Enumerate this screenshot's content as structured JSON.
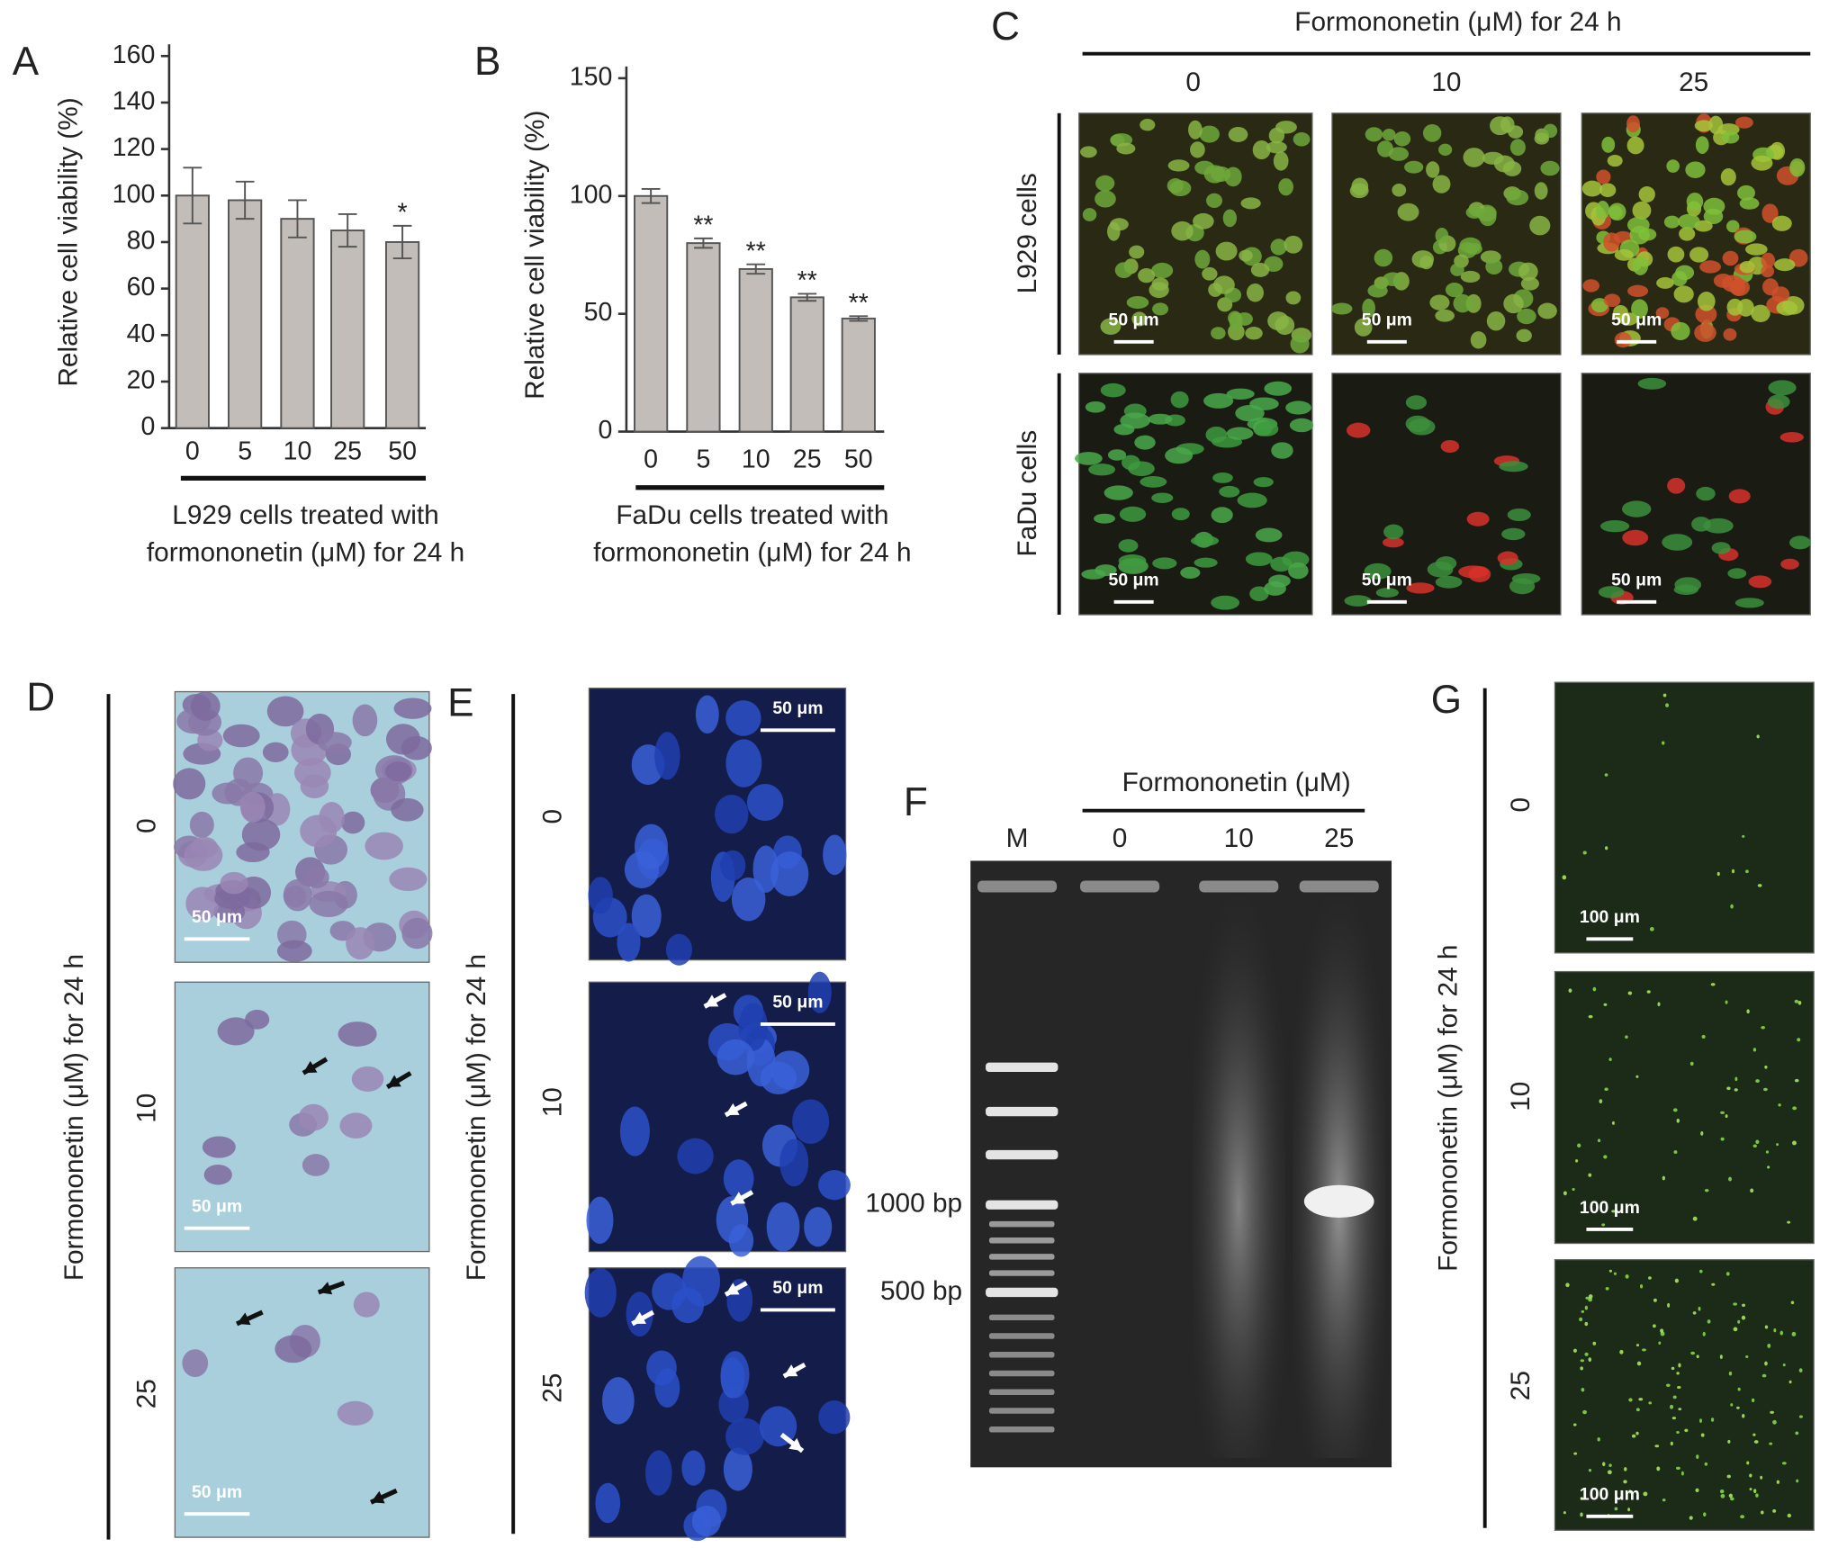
{
  "chart_data": [
    {
      "type": "bar",
      "panel_label": "A",
      "categories": [
        "0",
        "5",
        "10",
        "25",
        "50"
      ],
      "values": [
        100,
        98,
        90,
        85,
        80
      ],
      "errors": [
        12,
        8,
        8,
        7,
        7
      ],
      "significance": [
        null,
        null,
        null,
        null,
        "*"
      ],
      "ylabel": "Relative cell viability (%)",
      "xlabel": [
        "L929 cells treated with",
        "formononetin (μM) for 24 h"
      ],
      "ylim": [
        0,
        160
      ],
      "yticks": [
        0,
        20,
        40,
        60,
        80,
        100,
        120,
        140,
        160
      ],
      "color": "#c2bdb8"
    },
    {
      "type": "bar",
      "panel_label": "B",
      "categories": [
        "0",
        "5",
        "10",
        "25",
        "50"
      ],
      "values": [
        100,
        80,
        69,
        57,
        48
      ],
      "errors": [
        3,
        2,
        2,
        1.5,
        1
      ],
      "significance": [
        null,
        "**",
        "**",
        "**",
        "**"
      ],
      "ylabel": "Relative cell viability (%)",
      "xlabel": [
        "FaDu cells treated with",
        "formononetin (μM) for 24 h"
      ],
      "ylim": [
        0,
        150
      ],
      "yticks": [
        0,
        50,
        100,
        150
      ],
      "color": "#c2bdb8"
    }
  ],
  "panels": {
    "C": {
      "label": "C",
      "title": "Formononetin (μM) for 24 h",
      "columns": [
        "0",
        "10",
        "25"
      ],
      "rows": [
        "L929 cells",
        "FaDu cells"
      ],
      "scale_bar": "50 μm"
    },
    "D": {
      "label": "D",
      "axis_label": "Formononetin (μM) for 24 h",
      "rows": [
        "0",
        "10",
        "25"
      ],
      "scale_bar": "50 μm"
    },
    "E": {
      "label": "E",
      "axis_label": "Formononetin (μM) for 24 h",
      "rows": [
        "0",
        "10",
        "25"
      ],
      "scale_bar": "50 μm"
    },
    "F": {
      "label": "F",
      "title": "Formononetin (μM)",
      "lanes": [
        "M",
        "0",
        "10",
        "25"
      ],
      "markers": [
        "1000 bp",
        "500 bp"
      ]
    },
    "G": {
      "label": "G",
      "axis_label": "Formononetin (μM) for 24 h",
      "rows": [
        "0",
        "10",
        "25"
      ],
      "scale_bar": "100 μm"
    }
  }
}
